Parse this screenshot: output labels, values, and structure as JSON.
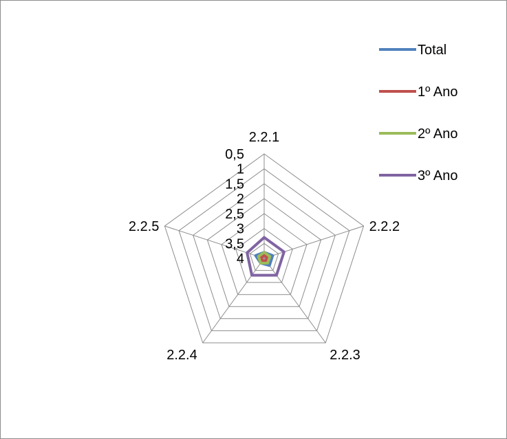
{
  "chart_data": {
    "type": "radar",
    "categories": [
      "2.2.1",
      "2.2.2",
      "2.2.3",
      "2.2.4",
      "2.2.5"
    ],
    "rlim": [
      0.5,
      4
    ],
    "reversed_scale": true,
    "ticks": [
      "0,5",
      "1",
      "1,5",
      "2",
      "2,5",
      "3",
      "3,5",
      "4"
    ],
    "grid": true,
    "legend_position": "right",
    "series": [
      {
        "name": "Total",
        "color": "#4f81bd",
        "values": [
          3.8,
          3.7,
          3.7,
          3.8,
          3.7
        ]
      },
      {
        "name": "1º Ano",
        "color": "#c0504d",
        "values": [
          3.9,
          3.9,
          3.9,
          3.9,
          3.9
        ]
      },
      {
        "name": "2º Ano",
        "color": "#9bbb59",
        "values": [
          3.8,
          3.8,
          3.8,
          3.8,
          3.8
        ]
      },
      {
        "name": "3º Ano",
        "color": "#8064a2",
        "values": [
          3.3,
          3.3,
          3.3,
          3.3,
          3.4
        ]
      }
    ]
  }
}
